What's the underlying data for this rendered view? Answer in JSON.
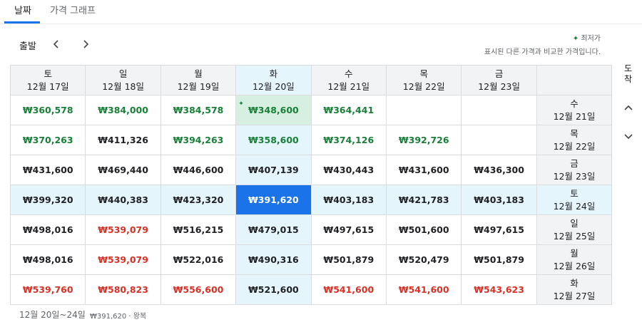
{
  "tabs": [
    "날짜",
    "가격 그래프"
  ],
  "departure_label": "출발",
  "arrival_label": [
    "도",
    "착"
  ],
  "legend": {
    "lowest": "최저가",
    "note": "표시된 다른 가격과 비교한 가격입니다."
  },
  "columns": [
    {
      "day": "토",
      "date": "12월 17일"
    },
    {
      "day": "일",
      "date": "12월 18일"
    },
    {
      "day": "월",
      "date": "12월 19일"
    },
    {
      "day": "화",
      "date": "12월 20일"
    },
    {
      "day": "수",
      "date": "12월 21일"
    },
    {
      "day": "목",
      "date": "12월 22일"
    },
    {
      "day": "금",
      "date": "12월 23일"
    }
  ],
  "selected": {
    "row": 3,
    "column": 3
  },
  "lowest": {
    "row": 0,
    "column": 3
  },
  "rows": [
    {
      "day": "수",
      "date": "12월 21일",
      "cells": [
        {
          "text": "₩360,578",
          "color": "#188038"
        },
        {
          "text": "₩384,000",
          "color": "#188038"
        },
        {
          "text": "₩384,578",
          "color": "#188038"
        },
        {
          "text": "₩348,600",
          "color": "#188038"
        },
        {
          "text": "₩364,441",
          "color": "#188038"
        },
        null,
        null
      ]
    },
    {
      "day": "목",
      "date": "12월 22일",
      "cells": [
        {
          "text": "₩370,263",
          "color": "#188038"
        },
        {
          "text": "₩411,326",
          "color": "#202124"
        },
        {
          "text": "₩394,263",
          "color": "#188038"
        },
        {
          "text": "₩358,600",
          "color": "#188038"
        },
        {
          "text": "₩374,126",
          "color": "#188038"
        },
        {
          "text": "₩392,726",
          "color": "#188038"
        },
        null
      ]
    },
    {
      "day": "금",
      "date": "12월 23일",
      "cells": [
        {
          "text": "₩431,600",
          "color": "#202124"
        },
        {
          "text": "₩469,440",
          "color": "#202124"
        },
        {
          "text": "₩446,600",
          "color": "#202124"
        },
        {
          "text": "₩407,139",
          "color": "#202124"
        },
        {
          "text": "₩430,443",
          "color": "#202124"
        },
        {
          "text": "₩431,600",
          "color": "#202124"
        },
        {
          "text": "₩436,300",
          "color": "#202124"
        }
      ]
    },
    {
      "day": "토",
      "date": "12월 24일",
      "cells": [
        {
          "text": "₩399,320",
          "color": "#202124"
        },
        {
          "text": "₩440,383",
          "color": "#202124"
        },
        {
          "text": "₩423,320",
          "color": "#202124"
        },
        {
          "text": "₩391,620",
          "color": "#202124"
        },
        {
          "text": "₩403,183",
          "color": "#202124"
        },
        {
          "text": "₩421,783",
          "color": "#202124"
        },
        {
          "text": "₩403,183",
          "color": "#202124"
        }
      ]
    },
    {
      "day": "일",
      "date": "12월 25일",
      "cells": [
        {
          "text": "₩498,016",
          "color": "#202124"
        },
        {
          "text": "₩539,079",
          "color": "#d93025"
        },
        {
          "text": "₩516,215",
          "color": "#202124"
        },
        {
          "text": "₩479,015",
          "color": "#202124"
        },
        {
          "text": "₩497,615",
          "color": "#202124"
        },
        {
          "text": "₩501,600",
          "color": "#202124"
        },
        {
          "text": "₩497,615",
          "color": "#202124"
        }
      ]
    },
    {
      "day": "월",
      "date": "12월 26일",
      "cells": [
        {
          "text": "₩498,016",
          "color": "#202124"
        },
        {
          "text": "₩539,079",
          "color": "#d93025"
        },
        {
          "text": "₩522,016",
          "color": "#202124"
        },
        {
          "text": "₩490,316",
          "color": "#202124"
        },
        {
          "text": "₩501,879",
          "color": "#202124"
        },
        {
          "text": "₩520,479",
          "color": "#202124"
        },
        {
          "text": "₩501,879",
          "color": "#202124"
        }
      ]
    },
    {
      "day": "화",
      "date": "12월 27일",
      "cells": [
        {
          "text": "₩539,760",
          "color": "#d93025"
        },
        {
          "text": "₩580,823",
          "color": "#d93025"
        },
        {
          "text": "₩556,600",
          "color": "#d93025"
        },
        {
          "text": "₩521,600",
          "color": "#202124"
        },
        {
          "text": "₩541,600",
          "color": "#d93025"
        },
        {
          "text": "₩541,600",
          "color": "#d93025"
        },
        {
          "text": "₩543,623",
          "color": "#d93025"
        }
      ]
    }
  ],
  "footer": {
    "dates": "12월 20일~24일",
    "summary": "₩391,620 · 왕복"
  }
}
